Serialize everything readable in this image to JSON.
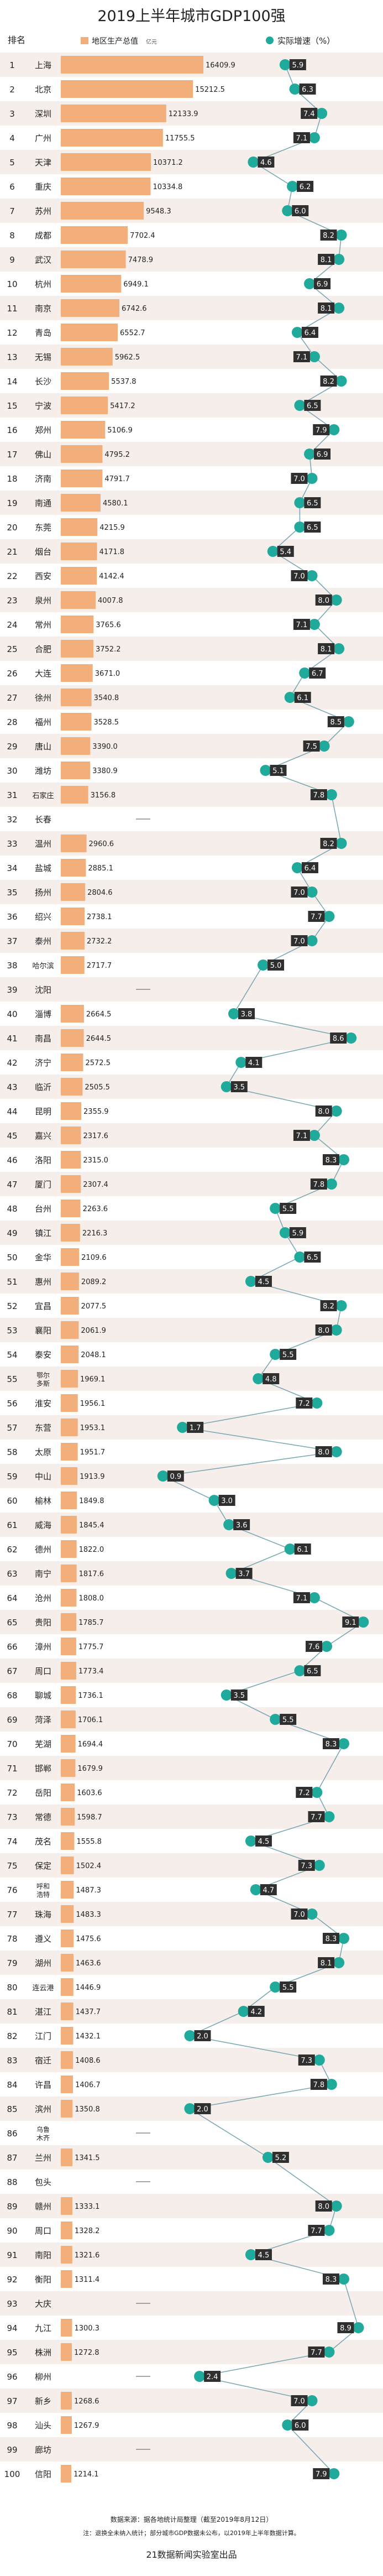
{
  "title": "2019上半年城市GDP100强",
  "headers": {
    "rank": "排名",
    "gdp": "地区生产总值",
    "gdp_unit": "亿元",
    "growth": "实际增速（%）"
  },
  "colors": {
    "bar": "#f2ae7b",
    "growth": "#1faa9c",
    "line": "#7aa9b4",
    "stripe_even": "#f6eeea",
    "stripe_odd": "#ffffff"
  },
  "notes": {
    "source": "数据来源：据各地统计局整理（截至2019年8月12日）",
    "remark": "注：退换全未纳入统计；部分城市GDP数据未公布，以2019年上半年数据计算。",
    "credit": "21数据新闻实验室出品"
  },
  "chart_data": {
    "type": "bar",
    "categories": [
      "上海",
      "北京",
      "深圳",
      "广州",
      "天津",
      "重庆",
      "苏州",
      "成都",
      "武汉",
      "杭州",
      "南京",
      "青岛",
      "无锡",
      "长沙",
      "宁波",
      "郑州",
      "佛山",
      "济南",
      "南通",
      "东莞",
      "烟台",
      "西安",
      "泉州",
      "常州",
      "合肥",
      "大连",
      "徐州",
      "福州",
      "唐山",
      "潍坊",
      "石家庄",
      "长春",
      "温州",
      "盐城",
      "扬州",
      "绍兴",
      "泰州",
      "哈尔滨",
      "沈阳",
      "淄博",
      "南昌",
      "济宁",
      "临沂",
      "昆明",
      "嘉兴",
      "洛阳",
      "厦门",
      "台州",
      "镇江",
      "金华",
      "惠州",
      "宜昌",
      "襄阳",
      "泰安",
      "鄂尔多斯",
      "淮安",
      "东营",
      "太原",
      "中山",
      "榆林",
      "威海",
      "德州",
      "南宁",
      "沧州",
      "贵阳",
      "漳州",
      "周口",
      "聊城",
      "菏泽",
      "芜湖",
      "邯郸",
      "岳阳",
      "常德",
      "茂名",
      "保定",
      "呼和浩特",
      "珠海",
      "遵义",
      "湖州",
      "连云港",
      "湛江",
      "江门",
      "宿迁",
      "许昌",
      "滨州",
      "乌鲁木齐",
      "兰州",
      "包头",
      "赣州",
      "周口",
      "南阳",
      "衡阳",
      "大庆",
      "九江",
      "株洲",
      "柳州",
      "新乡",
      "汕头",
      "廊坊",
      "信阳"
    ],
    "ranks": [
      1,
      2,
      3,
      4,
      5,
      6,
      7,
      8,
      9,
      10,
      11,
      12,
      13,
      14,
      15,
      16,
      17,
      18,
      19,
      20,
      21,
      22,
      23,
      24,
      25,
      26,
      27,
      28,
      29,
      30,
      31,
      32,
      33,
      34,
      35,
      36,
      37,
      38,
      39,
      40,
      41,
      42,
      43,
      44,
      45,
      46,
      47,
      48,
      49,
      50,
      51,
      52,
      53,
      54,
      55,
      56,
      57,
      58,
      59,
      60,
      61,
      62,
      63,
      64,
      65,
      66,
      67,
      68,
      69,
      70,
      71,
      72,
      73,
      74,
      75,
      76,
      77,
      78,
      79,
      80,
      81,
      82,
      83,
      84,
      85,
      86,
      87,
      88,
      89,
      90,
      91,
      92,
      93,
      94,
      95,
      96,
      97,
      98,
      99,
      100
    ],
    "series": [
      {
        "name": "地区生产总值",
        "values": [
          16409.9,
          15212.5,
          12133.9,
          11755.5,
          10371.2,
          10334.8,
          9548.3,
          7702.4,
          7478.9,
          6949.1,
          6742.6,
          6552.7,
          5962.5,
          5537.8,
          5417.2,
          5106.9,
          4795.2,
          4791.7,
          4580.1,
          4215.9,
          4171.8,
          4142.4,
          4007.8,
          3765.6,
          3752.2,
          3671.0,
          3540.8,
          3528.5,
          3390.0,
          3380.9,
          3156.8,
          null,
          2960.6,
          2885.1,
          2804.6,
          2738.1,
          2732.2,
          2717.7,
          null,
          2664.5,
          2644.5,
          2572.5,
          2505.5,
          2355.9,
          2317.6,
          2315.0,
          2307.4,
          2263.6,
          2216.3,
          2109.6,
          2089.2,
          2077.5,
          2061.9,
          2048.1,
          1969.1,
          1956.1,
          1953.1,
          1951.7,
          1913.9,
          1849.8,
          1845.4,
          1822.0,
          1817.6,
          1808.0,
          1785.7,
          1775.7,
          1773.4,
          1736.1,
          1706.1,
          1694.4,
          1679.9,
          1603.6,
          1598.7,
          1555.8,
          1502.4,
          1487.3,
          1483.3,
          1475.6,
          1463.6,
          1446.9,
          1437.7,
          1432.1,
          1408.6,
          1406.7,
          1350.8,
          null,
          1341.5,
          null,
          1333.1,
          1328.2,
          1321.6,
          1311.4,
          null,
          1300.3,
          1272.8,
          null,
          1268.6,
          1267.9,
          null,
          1214.1
        ]
      },
      {
        "name": "实际增速",
        "values": [
          5.9,
          6.3,
          7.4,
          7.1,
          4.6,
          6.2,
          6.0,
          8.2,
          8.1,
          6.9,
          8.1,
          6.4,
          7.1,
          8.2,
          6.5,
          7.9,
          6.9,
          7.0,
          6.5,
          6.5,
          5.4,
          7.0,
          8.0,
          7.1,
          8.1,
          6.7,
          6.1,
          8.5,
          7.5,
          5.1,
          7.8,
          null,
          8.2,
          6.4,
          7.0,
          7.7,
          7.0,
          5.0,
          null,
          3.8,
          8.6,
          4.1,
          3.5,
          8.0,
          7.1,
          8.3,
          7.8,
          5.5,
          5.9,
          6.5,
          4.5,
          8.2,
          8.0,
          5.5,
          4.8,
          7.2,
          1.7,
          8.0,
          0.9,
          3.0,
          3.6,
          6.1,
          3.7,
          7.1,
          9.1,
          7.6,
          6.5,
          3.5,
          5.5,
          8.3,
          null,
          7.2,
          7.7,
          4.5,
          7.3,
          4.7,
          7.0,
          8.3,
          8.1,
          5.5,
          4.2,
          2.0,
          7.3,
          7.8,
          2.0,
          null,
          5.2,
          null,
          8.0,
          7.7,
          4.5,
          8.3,
          null,
          8.9,
          7.7,
          2.4,
          7.0,
          6.0,
          null,
          7.9
        ]
      }
    ],
    "gdp_axis_max": 16409.9,
    "growth_axis_range": [
      0,
      9.5
    ]
  }
}
